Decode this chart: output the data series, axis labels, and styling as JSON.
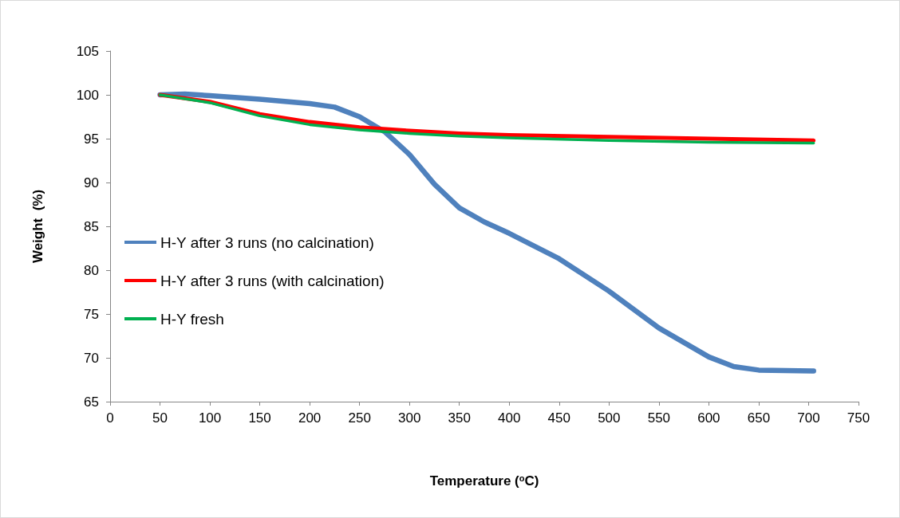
{
  "chart_data": {
    "type": "line",
    "xlabel": "Temperature ($^{o}$C)",
    "ylabel": "Weight  (%)",
    "xlim": [
      0,
      750
    ],
    "xticks": [
      0,
      50,
      100,
      150,
      200,
      250,
      300,
      350,
      400,
      450,
      500,
      550,
      600,
      650,
      700,
      750
    ],
    "ylim": [
      65,
      105
    ],
    "yticks": [
      65,
      70,
      75,
      80,
      85,
      90,
      95,
      100,
      105
    ],
    "grid": false,
    "legend": "left",
    "series": [
      {
        "name": "H-Y after 3 runs (no calcination)",
        "color": "#4f81bd",
        "x": [
          50,
          75,
          100,
          150,
          200,
          225,
          250,
          275,
          300,
          325,
          350,
          375,
          400,
          450,
          500,
          550,
          600,
          625,
          650,
          705
        ],
        "values": [
          100,
          100.1,
          99.9,
          99.5,
          99.0,
          98.6,
          97.5,
          95.8,
          93.2,
          89.8,
          87.1,
          85.5,
          84.2,
          81.3,
          77.6,
          73.4,
          70.1,
          69.0,
          68.6,
          68.5
        ]
      },
      {
        "name": "H-Y after 3 runs (with calcination)",
        "color": "#ff0000",
        "x": [
          50,
          100,
          150,
          200,
          250,
          300,
          350,
          400,
          500,
          600,
          705
        ],
        "values": [
          100,
          99.2,
          97.8,
          96.9,
          96.3,
          95.9,
          95.6,
          95.4,
          95.2,
          95.0,
          94.8
        ]
      },
      {
        "name": "H-Y fresh",
        "color": "#00b050",
        "x": [
          50,
          100,
          150,
          200,
          250,
          300,
          350,
          400,
          500,
          600,
          705
        ],
        "values": [
          100,
          99.1,
          97.6,
          96.6,
          96.0,
          95.6,
          95.3,
          95.1,
          94.8,
          94.6,
          94.5
        ]
      }
    ]
  }
}
